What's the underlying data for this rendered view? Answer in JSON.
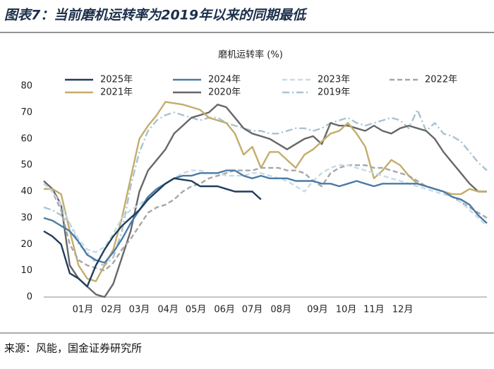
{
  "figure_title": "图表7：当前磨机运转率为2019年以来的同期最低",
  "source": "来源：风能，国金证券研究所",
  "chart_data": {
    "type": "line",
    "title": "磨机运转率 (%)",
    "x": [
      1,
      2,
      3,
      4,
      5,
      6,
      7,
      8,
      9,
      10,
      11,
      12,
      13,
      14,
      15,
      16,
      17,
      18,
      19,
      20,
      21,
      22,
      23,
      24,
      25,
      26,
      27,
      28,
      29,
      30,
      31,
      32,
      33,
      34,
      35,
      36,
      37,
      38,
      39,
      40,
      41,
      42,
      43,
      44,
      45,
      46,
      47,
      48,
      49,
      50,
      51,
      52
    ],
    "xlim": [
      1,
      52
    ],
    "xticks": [
      {
        "value": 5.5,
        "label": "01月"
      },
      {
        "value": 8.8,
        "label": "02月"
      },
      {
        "value": 12.0,
        "label": "03月"
      },
      {
        "value": 15.3,
        "label": "04月"
      },
      {
        "value": 18.5,
        "label": "05月"
      },
      {
        "value": 21.8,
        "label": "06月"
      },
      {
        "value": 25.0,
        "label": "07月"
      },
      {
        "value": 28.3,
        "label": "08月"
      },
      {
        "value": 32.5,
        "label": "09月"
      },
      {
        "value": 35.8,
        "label": "10月"
      },
      {
        "value": 39.0,
        "label": "11月"
      },
      {
        "value": 42.3,
        "label": "12月"
      }
    ],
    "ylim": [
      0,
      80
    ],
    "yticks": [
      0,
      10,
      20,
      30,
      40,
      50,
      60,
      70,
      80
    ],
    "grid": false,
    "series": [
      {
        "name": "2025年",
        "color": "#1f3d5c",
        "style": "solid",
        "values": [
          25,
          23,
          20,
          9,
          7,
          4,
          12,
          18,
          23,
          27,
          30,
          33,
          37,
          40,
          43,
          45,
          44.5,
          44,
          42,
          42,
          42,
          41,
          40,
          40,
          40,
          37,
          null,
          null,
          null,
          null,
          null,
          null,
          null,
          null,
          null,
          null,
          null,
          null,
          null,
          null,
          null,
          null,
          null,
          null,
          null,
          null,
          null,
          null,
          null,
          null,
          null,
          null
        ]
      },
      {
        "name": "2024年",
        "color": "#4a7ba6",
        "style": "solid",
        "values": [
          30,
          29,
          27,
          25,
          21,
          16,
          14,
          13,
          17,
          22,
          28,
          33,
          38,
          41,
          43,
          45,
          46,
          46,
          47,
          47,
          47,
          48,
          48,
          46,
          45,
          46,
          45,
          45,
          45,
          44,
          44,
          44,
          43,
          43,
          42,
          43,
          44,
          43,
          42,
          43,
          43,
          43,
          43,
          43,
          42,
          41,
          40,
          38,
          37,
          35,
          31,
          28
        ]
      },
      {
        "name": "2023年",
        "color": "#c5dbe8",
        "style": "dashed",
        "values": [
          43,
          40,
          35,
          28,
          22,
          18,
          17,
          19,
          24,
          30,
          33,
          35,
          38,
          41,
          43,
          45,
          47,
          48,
          48,
          47,
          47,
          46,
          46,
          46,
          47,
          47,
          46,
          45,
          44,
          42,
          40,
          44,
          47,
          49,
          50,
          50,
          49,
          48,
          47,
          46,
          45,
          44,
          43,
          42,
          41,
          40,
          39,
          38,
          36,
          33,
          30,
          27
        ]
      },
      {
        "name": "2022年",
        "color": "#a6a6a6",
        "style": "dashed",
        "values": [
          43,
          40,
          33,
          20,
          14,
          12,
          11,
          10,
          13,
          18,
          22,
          27,
          32,
          34,
          35,
          37,
          40,
          42,
          43,
          45,
          46,
          47,
          48,
          48,
          48,
          49,
          49,
          49,
          48,
          48,
          47,
          44,
          42,
          47,
          49,
          50,
          50,
          50,
          49,
          49,
          48,
          47,
          46,
          44,
          42,
          41,
          40,
          38,
          36,
          34,
          32,
          30
        ]
      },
      {
        "name": "2021年",
        "color": "#c2ad6b",
        "style": "solid",
        "values": [
          41,
          41,
          39,
          25,
          12,
          7,
          6,
          12,
          18,
          30,
          45,
          60,
          65,
          69,
          74,
          73.5,
          73,
          72,
          71,
          68,
          67,
          66,
          62,
          54,
          57,
          49,
          55,
          55,
          52,
          49,
          54,
          56,
          59,
          62,
          63,
          66,
          62,
          57,
          45,
          48,
          52,
          50,
          46,
          43,
          42,
          41,
          40,
          39,
          39,
          41,
          40,
          40
        ]
      },
      {
        "name": "2020年",
        "color": "#676767",
        "style": "solid",
        "values": [
          44,
          41,
          35,
          12,
          7,
          4,
          1,
          0,
          5,
          15,
          25,
          40,
          48,
          52,
          56,
          62,
          65,
          68,
          69,
          70,
          73,
          72,
          68,
          64,
          62,
          61,
          60,
          58,
          56,
          58,
          60,
          61,
          58,
          66,
          65,
          65,
          64,
          63,
          65,
          63,
          62,
          64,
          65,
          64,
          63,
          60,
          55,
          51,
          47,
          43,
          40,
          40
        ]
      },
      {
        "name": "2019年",
        "color": "#a8c3d0",
        "style": "dashdot",
        "values": [
          34,
          33,
          31,
          28,
          20,
          17,
          13,
          12,
          15,
          25,
          42,
          55,
          63,
          67,
          69,
          70,
          69,
          68,
          67,
          68,
          68,
          66,
          65,
          64,
          63,
          63,
          62,
          62,
          63,
          64,
          64,
          63,
          64,
          66,
          67,
          68,
          66,
          65,
          66,
          67,
          68,
          67,
          64,
          71,
          63,
          66,
          62,
          61,
          59,
          55,
          51,
          48
        ]
      }
    ]
  }
}
